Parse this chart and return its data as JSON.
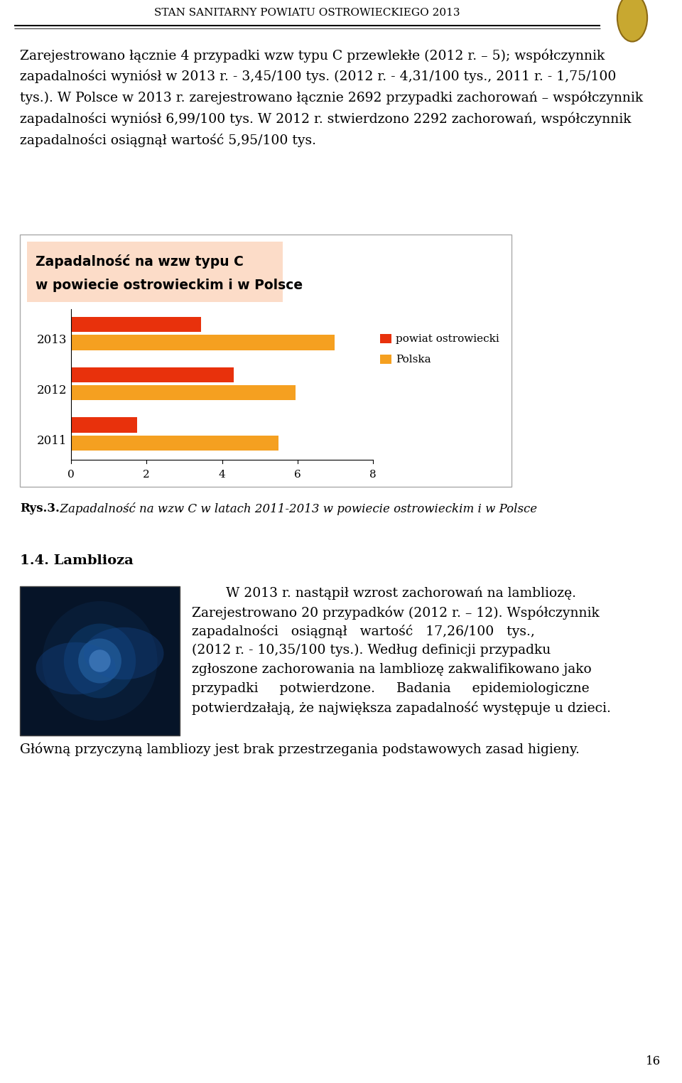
{
  "page_title": "STAN SANITARNY POWIATU OSTROWIECKIEGO 2013",
  "para_lines": [
    "Zarejestrowano łącznie 4 przypadki wzw typu C przewlekłe (2012 r. – 5); współczynnik",
    "zapadalności wyniósł w 2013 r. - 3,45/100 tys. (2012 r. - 4,31/100 tys., 2011 r. - 1,75/100",
    "tys.). W Polsce w 2013 r. zarejestrowano łącznie 2692 przypadki zachorowań – współczynnik",
    "zapadalności wyniósł 6,99/100 tys. W 2012 r. stwierdzono 2292 zachorowań, współczynnik",
    "zapadalności osiągnął wartość 5,95/100 tys."
  ],
  "chart_title_line1": "Zapadalność na wzw typu C",
  "chart_title_line2": "w powiecie ostrowieckim i w Polsce",
  "years": [
    "2013",
    "2012",
    "2011"
  ],
  "powiat_values": [
    3.45,
    4.31,
    1.75
  ],
  "polska_values": [
    6.99,
    5.95,
    5.5
  ],
  "powiat_color": "#E8310C",
  "polska_color": "#F5A020",
  "legend_powiat": "powiat ostrowiecki",
  "legend_polska": "Polska",
  "xlim": [
    0,
    8
  ],
  "xticks": [
    0,
    2,
    4,
    6,
    8
  ],
  "title_box_color": "#FCDCC8",
  "caption_bold": "Rys.3.",
  "caption_italic": "  Zapadalność na wzw C w latach 2011-2013 w powiecie ostrowieckim i w Polsce",
  "section_title": "1.4. Lamblioza",
  "lamb_right_lines": [
    "        W 2013 r. nastąpił wzrost zachorowań na lambliozę.",
    "Zarejestrowano 20 przypadków (2012 r. – 12). Współczynnik",
    "zapadalności   osiągnął   wartość   17,26/100   tys.,",
    "(2012 r. - 10,35/100 tys.). Według definicji przypadku",
    "zgłoszone zachorowania na lambliozę zakwalifikowano jako",
    "przypadki     potwierdzone.     Badania     epidemiologiczne",
    "potwierdzałają, że największa zapadalność występuje u dzieci."
  ],
  "lamb_full_line": "Główną przyczyną lambliozy jest brak przestrzegania podstawowych zasad higieny.",
  "page_number": "16",
  "bg_color": "#FFFFFF",
  "header_line_color": "#000000",
  "body_fontsize": 13.5,
  "title_fontsize": 11,
  "chart_title_fontsize": 13.5
}
